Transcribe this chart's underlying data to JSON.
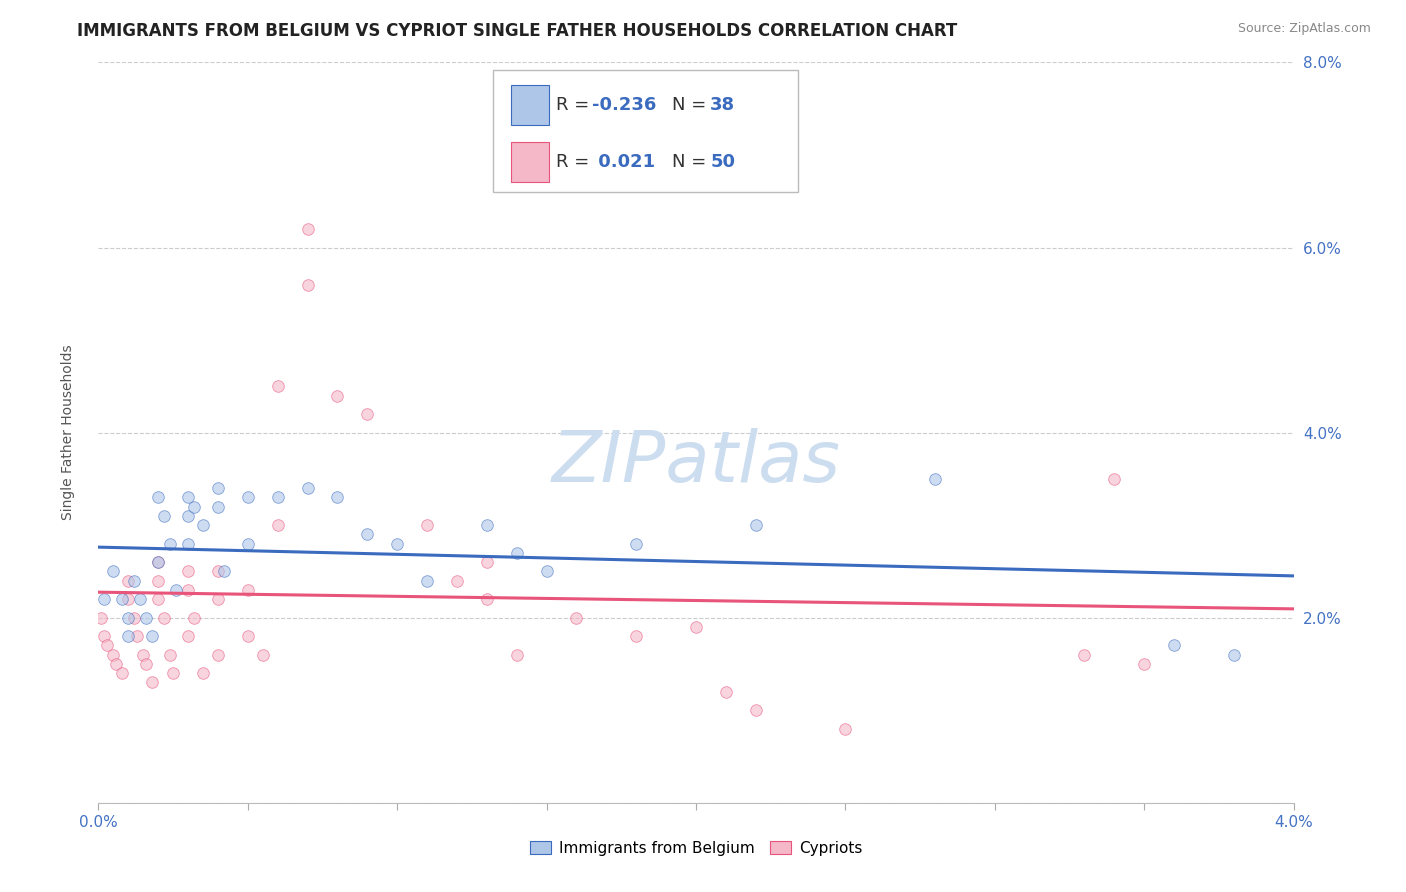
{
  "title": "IMMIGRANTS FROM BELGIUM VS CYPRIOT SINGLE FATHER HOUSEHOLDS CORRELATION CHART",
  "source_text": "Source: ZipAtlas.com",
  "ylabel": "Single Father Households",
  "legend_series": [
    {
      "label": "Immigrants from Belgium",
      "R": -0.236,
      "N": 38,
      "color": "#aec6e8",
      "line_color": "#3a6bbf"
    },
    {
      "label": "Cypriots",
      "R": 0.021,
      "N": 50,
      "color": "#f4b8c8",
      "line_color": "#e8547a"
    }
  ],
  "xmin": 0.0,
  "xmax": 0.04,
  "ymin": 0.0,
  "ymax": 0.08,
  "x_ticks": [
    0.0,
    0.005,
    0.01,
    0.015,
    0.02,
    0.025,
    0.03,
    0.035,
    0.04
  ],
  "x_tick_labels_shown": {
    "0.0": "0.0%",
    "0.04": "4.0%"
  },
  "y_ticks": [
    0.0,
    0.02,
    0.04,
    0.06,
    0.08
  ],
  "y_tick_labels_right": [
    "",
    "2.0%",
    "4.0%",
    "6.0%",
    "8.0%"
  ],
  "background_color": "#ffffff",
  "grid_color": "#cccccc",
  "watermark_text": "ZIPatlas",
  "blue_scatter_x": [
    0.0002,
    0.0005,
    0.0008,
    0.001,
    0.001,
    0.0012,
    0.0014,
    0.0016,
    0.0018,
    0.002,
    0.002,
    0.0022,
    0.0024,
    0.0026,
    0.003,
    0.003,
    0.003,
    0.0032,
    0.0035,
    0.004,
    0.004,
    0.0042,
    0.005,
    0.005,
    0.006,
    0.007,
    0.008,
    0.009,
    0.01,
    0.011,
    0.013,
    0.014,
    0.015,
    0.018,
    0.022,
    0.028,
    0.036,
    0.038
  ],
  "blue_scatter_y": [
    0.022,
    0.025,
    0.022,
    0.02,
    0.018,
    0.024,
    0.022,
    0.02,
    0.018,
    0.026,
    0.033,
    0.031,
    0.028,
    0.023,
    0.033,
    0.031,
    0.028,
    0.032,
    0.03,
    0.034,
    0.032,
    0.025,
    0.033,
    0.028,
    0.033,
    0.034,
    0.033,
    0.029,
    0.028,
    0.024,
    0.03,
    0.027,
    0.025,
    0.028,
    0.03,
    0.035,
    0.017,
    0.016
  ],
  "pink_scatter_x": [
    0.0001,
    0.0002,
    0.0003,
    0.0005,
    0.0006,
    0.0008,
    0.001,
    0.001,
    0.0012,
    0.0013,
    0.0015,
    0.0016,
    0.0018,
    0.002,
    0.002,
    0.002,
    0.0022,
    0.0024,
    0.0025,
    0.003,
    0.003,
    0.003,
    0.0032,
    0.0035,
    0.004,
    0.004,
    0.004,
    0.005,
    0.005,
    0.0055,
    0.006,
    0.006,
    0.007,
    0.007,
    0.008,
    0.009,
    0.011,
    0.012,
    0.013,
    0.013,
    0.014,
    0.016,
    0.018,
    0.02,
    0.021,
    0.022,
    0.025,
    0.033,
    0.034,
    0.035
  ],
  "pink_scatter_y": [
    0.02,
    0.018,
    0.017,
    0.016,
    0.015,
    0.014,
    0.024,
    0.022,
    0.02,
    0.018,
    0.016,
    0.015,
    0.013,
    0.026,
    0.024,
    0.022,
    0.02,
    0.016,
    0.014,
    0.025,
    0.023,
    0.018,
    0.02,
    0.014,
    0.025,
    0.022,
    0.016,
    0.023,
    0.018,
    0.016,
    0.03,
    0.045,
    0.062,
    0.056,
    0.044,
    0.042,
    0.03,
    0.024,
    0.026,
    0.022,
    0.016,
    0.02,
    0.018,
    0.019,
    0.012,
    0.01,
    0.008,
    0.016,
    0.035,
    0.015
  ],
  "title_fontsize": 12,
  "axis_fontsize": 10,
  "tick_fontsize": 11,
  "legend_fontsize": 13,
  "watermark_fontsize": 52,
  "watermark_color": "#cdddf0",
  "scatter_size": 70,
  "scatter_alpha": 0.6,
  "line_width": 2.2
}
